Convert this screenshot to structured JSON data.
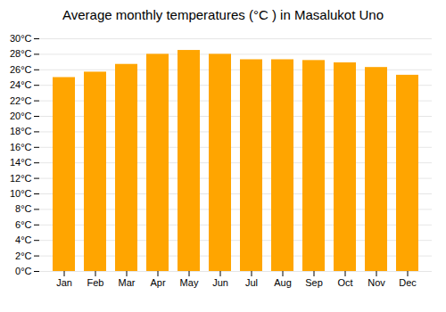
{
  "chart_data": {
    "type": "bar",
    "title": "Average monthly temperatures (°C ) in Masalukot Uno",
    "categories": [
      "Jan",
      "Feb",
      "Mar",
      "Apr",
      "May",
      "Jun",
      "Jul",
      "Aug",
      "Sep",
      "Oct",
      "Nov",
      "Dec"
    ],
    "values": [
      25.0,
      25.7,
      26.7,
      28.0,
      28.5,
      28.0,
      27.3,
      27.3,
      27.2,
      26.9,
      26.3,
      25.3
    ],
    "color": "#FFA500",
    "ylim": [
      0,
      30
    ],
    "yticks": [
      {
        "value": 0,
        "label": "0°C"
      },
      {
        "value": 2,
        "label": "2°C"
      },
      {
        "value": 4,
        "label": "4°C"
      },
      {
        "value": 6,
        "label": "6°C"
      },
      {
        "value": 8,
        "label": "8°C"
      },
      {
        "value": 10,
        "label": "10°C"
      },
      {
        "value": 12,
        "label": "12°C"
      },
      {
        "value": 14,
        "label": "14°C"
      },
      {
        "value": 16,
        "label": "16°C"
      },
      {
        "value": 18,
        "label": "18°C"
      },
      {
        "value": 20,
        "label": "20°C"
      },
      {
        "value": 22,
        "label": "22°C"
      },
      {
        "value": 24,
        "label": "24°C"
      },
      {
        "value": 26,
        "label": "26°C"
      },
      {
        "value": 28,
        "label": "28°C"
      },
      {
        "value": 30,
        "label": "30°C"
      }
    ],
    "grid": true
  }
}
